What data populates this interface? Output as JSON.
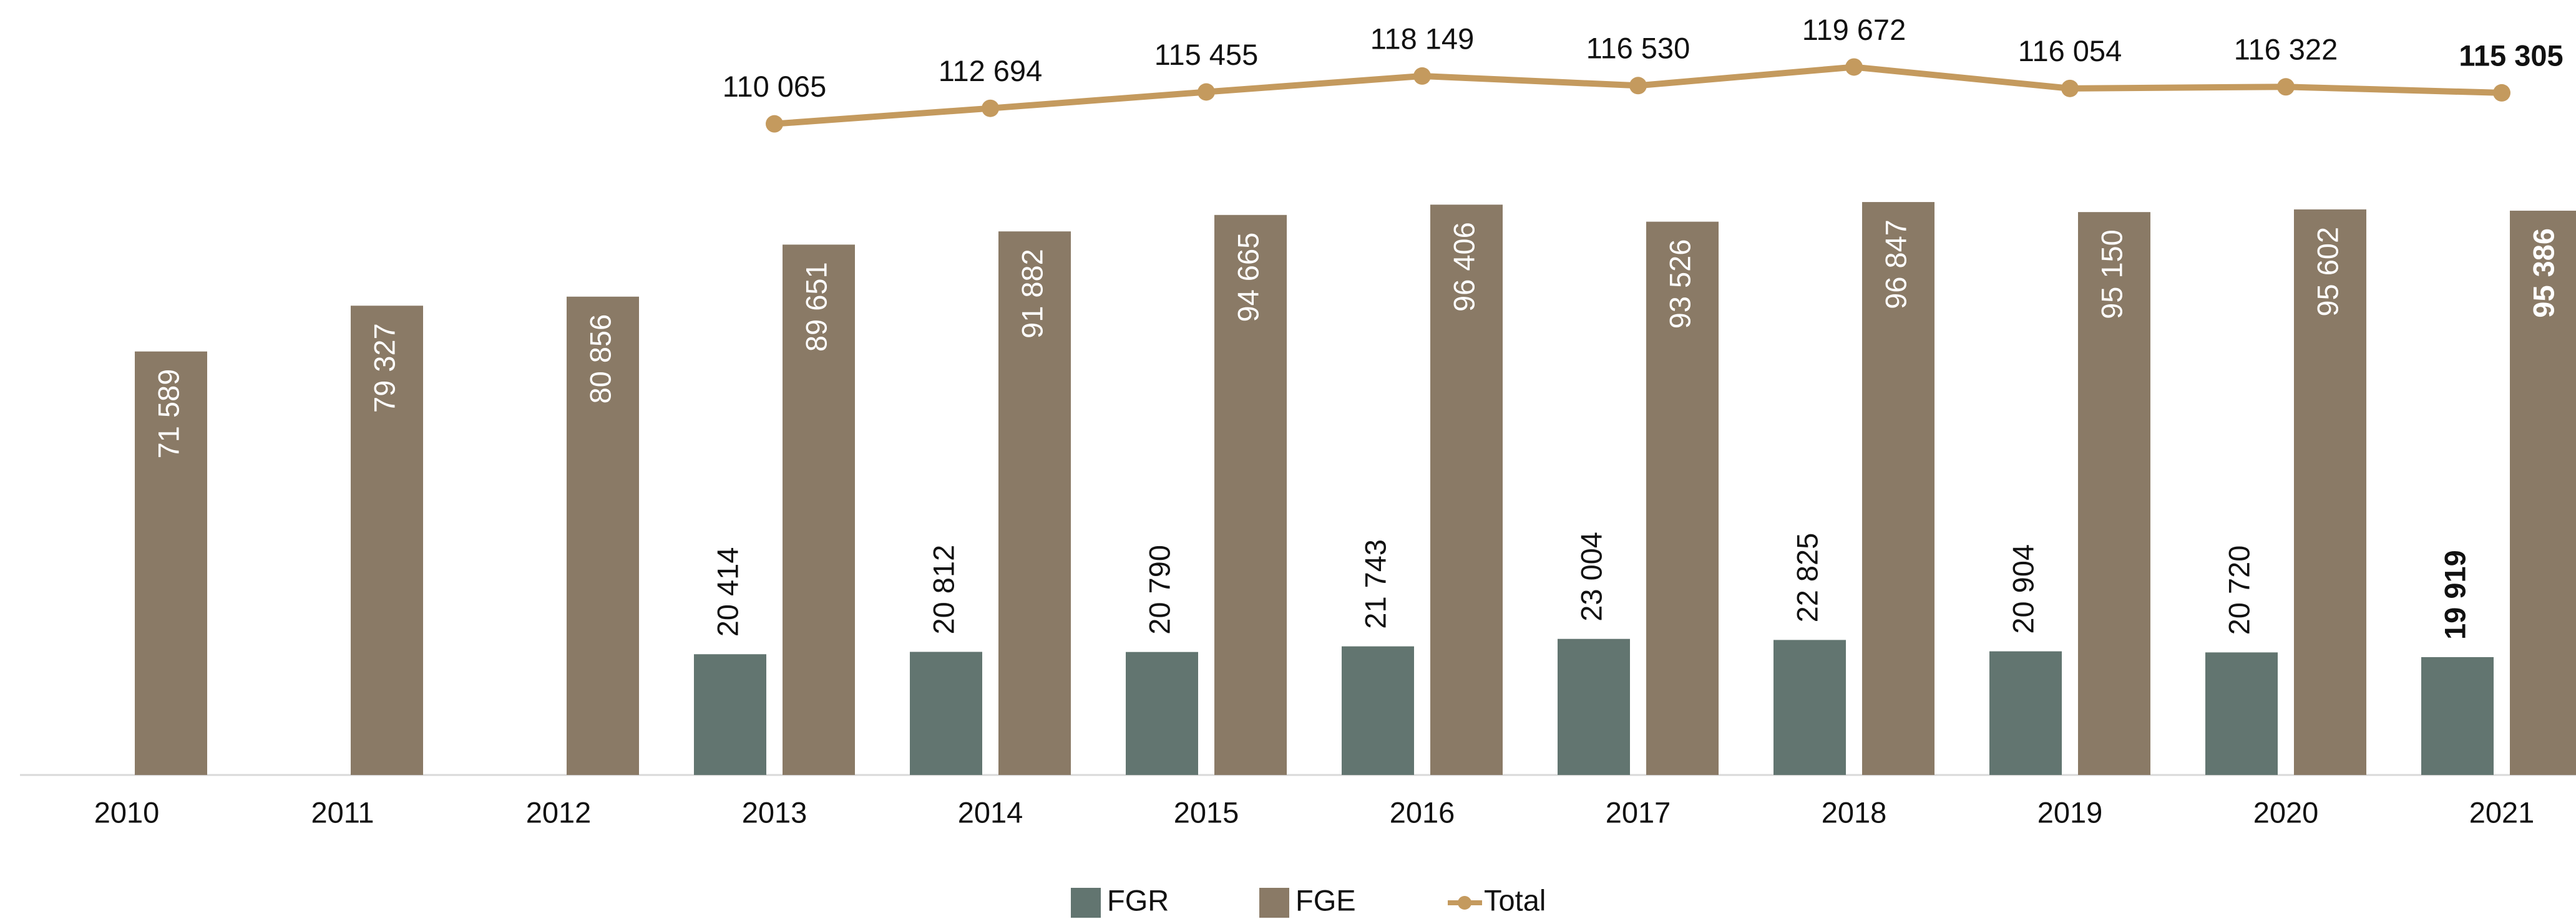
{
  "chart_data": {
    "type": "bar_line",
    "categories": [
      "2010",
      "2011",
      "2012",
      "2013",
      "2014",
      "2015",
      "2016",
      "2017",
      "2018",
      "2019",
      "2020",
      "2021"
    ],
    "series": [
      {
        "name": "FGR",
        "color": "#627570",
        "type": "bar",
        "values": [
          null,
          null,
          null,
          20414,
          20812,
          20790,
          21743,
          23004,
          22825,
          20904,
          20720,
          19919
        ],
        "value_labels": [
          null,
          null,
          null,
          "20 414",
          "20 812",
          "20 790",
          "21 743",
          "23 004",
          "22 825",
          "20 904",
          "20 720",
          "19 919"
        ]
      },
      {
        "name": "FGE",
        "color": "#8a7a66",
        "type": "bar",
        "values": [
          71589,
          79327,
          80856,
          89651,
          91882,
          94665,
          96406,
          93526,
          96847,
          95150,
          95602,
          95386
        ],
        "value_labels": [
          "71 589",
          "79 327",
          "80 856",
          "89 651",
          "91 882",
          "94 665",
          "96 406",
          "93 526",
          "96 847",
          "95 150",
          "95 602",
          "95 386"
        ]
      },
      {
        "name": "Total",
        "color": "#c49a5e",
        "type": "line",
        "values": [
          null,
          null,
          null,
          110065,
          112694,
          115455,
          118149,
          116530,
          119672,
          116054,
          116322,
          115305
        ],
        "value_labels": [
          null,
          null,
          null,
          "110 065",
          "112 694",
          "115 455",
          "118 149",
          "116 530",
          "119 672",
          "116 054",
          "116 322",
          "115 305"
        ]
      }
    ],
    "ylim": [
      0,
      131000
    ],
    "legend": "bottom"
  }
}
